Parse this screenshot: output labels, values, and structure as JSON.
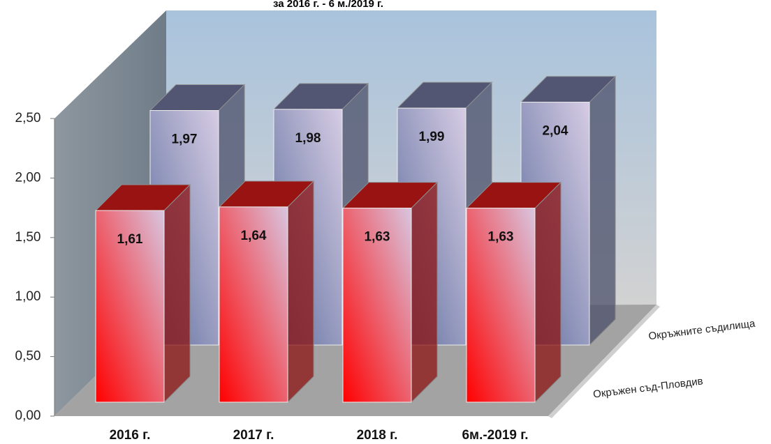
{
  "chart_data": {
    "type": "bar3d",
    "title": "за 2016 г. - 6 м./2019 г.",
    "categories": [
      "2016 г.",
      "2017 г.",
      "2018 г.",
      "6м.-2019 г."
    ],
    "series": [
      {
        "name": "Окръжен съд-Пловдив",
        "color": "#ff2020",
        "values": [
          1.61,
          1.64,
          1.63,
          1.63
        ],
        "value_labels": [
          "1,61",
          "1,64",
          "1,63",
          "1,63"
        ]
      },
      {
        "name": "Окръжните съдилища",
        "color": "#8890c0",
        "values": [
          1.97,
          1.98,
          1.99,
          2.04
        ],
        "value_labels": [
          "1,97",
          "1,98",
          "1,99",
          "2,04"
        ]
      }
    ],
    "ylim": [
      0,
      2.5
    ],
    "yticks": [
      {
        "value": 0,
        "label": "0,00"
      },
      {
        "value": 0.5,
        "label": "0,50"
      },
      {
        "value": 1,
        "label": "1,00"
      },
      {
        "value": 1.5,
        "label": "1,50"
      },
      {
        "value": 2,
        "label": "2,00"
      },
      {
        "value": 2.5,
        "label": "2,50"
      }
    ]
  }
}
